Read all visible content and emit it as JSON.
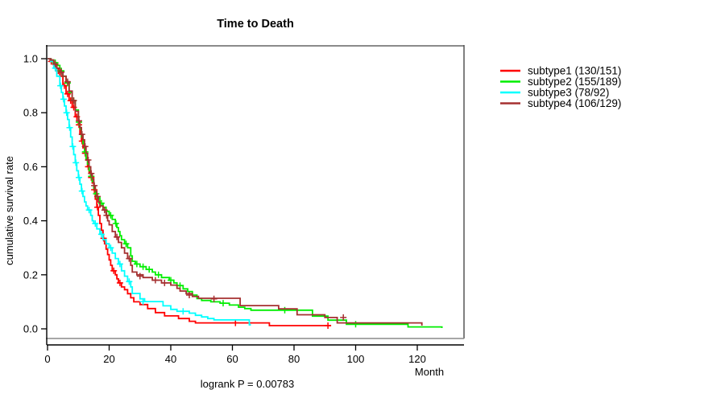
{
  "figure": {
    "title": "Time to Death",
    "x_axis_label": "Month",
    "y_axis_label": "cumulative survival rate",
    "footnote": "logrank P = 0.00783"
  },
  "axes": {
    "x_tick_labels": [
      "0",
      "20",
      "40",
      "60",
      "80",
      "100",
      "120"
    ],
    "y_tick_labels": [
      "0.0",
      "0.2",
      "0.4",
      "0.6",
      "0.8",
      "1.0"
    ],
    "frame_color": "#7f7f7f",
    "axis_color": "#000000"
  },
  "chart_data": {
    "type": "line",
    "variant": "kaplan_meier_step",
    "title": "Time to Death",
    "xlabel": "Month",
    "ylabel": "cumulative survival rate",
    "xlim": [
      0,
      135
    ],
    "ylim": [
      0,
      1.04
    ],
    "x_ticks": [
      0,
      20,
      40,
      60,
      80,
      100,
      120
    ],
    "y_ticks": [
      0.0,
      0.2,
      0.4,
      0.6,
      0.8,
      1.0
    ],
    "grid": false,
    "legend_position": "right-outside",
    "annotation": "logrank P = 0.00783",
    "series": [
      {
        "name": "subtype1",
        "label": "subtype1 (130/151)",
        "events": 130,
        "total": 151,
        "color": "#FF0000",
        "points": [
          [
            0,
            1.0
          ],
          [
            0.8,
            0.99
          ],
          [
            2,
            0.975
          ],
          [
            3,
            0.955
          ],
          [
            4,
            0.935
          ],
          [
            5,
            0.9
          ],
          [
            6,
            0.87
          ],
          [
            7,
            0.845
          ],
          [
            8,
            0.82
          ],
          [
            9,
            0.785
          ],
          [
            10,
            0.755
          ],
          [
            10.5,
            0.72
          ],
          [
            11,
            0.695
          ],
          [
            11.5,
            0.67
          ],
          [
            12,
            0.65
          ],
          [
            12.5,
            0.625
          ],
          [
            13,
            0.6
          ],
          [
            13.5,
            0.58
          ],
          [
            14,
            0.56
          ],
          [
            14.5,
            0.54
          ],
          [
            15,
            0.515
          ],
          [
            15.5,
            0.48
          ],
          [
            16,
            0.45
          ],
          [
            16.5,
            0.42
          ],
          [
            17,
            0.39
          ],
          [
            17.5,
            0.365
          ],
          [
            18,
            0.335
          ],
          [
            18.5,
            0.315
          ],
          [
            19,
            0.295
          ],
          [
            19.5,
            0.275
          ],
          [
            20,
            0.255
          ],
          [
            20.5,
            0.235
          ],
          [
            21,
            0.215
          ],
          [
            22,
            0.2
          ],
          [
            22.5,
            0.185
          ],
          [
            23,
            0.17
          ],
          [
            24,
            0.155
          ],
          [
            25,
            0.145
          ],
          [
            26,
            0.13
          ],
          [
            27,
            0.115
          ],
          [
            28,
            0.1
          ],
          [
            30,
            0.09
          ],
          [
            32.5,
            0.075
          ],
          [
            35,
            0.06
          ],
          [
            38,
            0.048
          ],
          [
            42.5,
            0.038
          ],
          [
            46,
            0.028
          ],
          [
            48,
            0.022
          ],
          [
            72,
            0.012
          ],
          [
            92,
            0.012
          ]
        ],
        "censor_ticks": [
          [
            1.2,
            0.99
          ],
          [
            3.5,
            0.955
          ],
          [
            5.5,
            0.9
          ],
          [
            6.5,
            0.87
          ],
          [
            7.5,
            0.845
          ],
          [
            8.5,
            0.82
          ],
          [
            9.5,
            0.785
          ],
          [
            10.2,
            0.755
          ],
          [
            11.2,
            0.695
          ],
          [
            12.2,
            0.65
          ],
          [
            13.2,
            0.6
          ],
          [
            14.2,
            0.56
          ],
          [
            15.2,
            0.515
          ],
          [
            16.2,
            0.45
          ],
          [
            18.2,
            0.335
          ],
          [
            21.5,
            0.215
          ],
          [
            23.5,
            0.17
          ],
          [
            61,
            0.022
          ],
          [
            91,
            0.012
          ]
        ]
      },
      {
        "name": "subtype2",
        "label": "subtype2 (155/189)",
        "events": 155,
        "total": 189,
        "color": "#00EE00",
        "points": [
          [
            0,
            1.0
          ],
          [
            1,
            0.995
          ],
          [
            2,
            0.985
          ],
          [
            3,
            0.975
          ],
          [
            4,
            0.955
          ],
          [
            5,
            0.935
          ],
          [
            6,
            0.91
          ],
          [
            7,
            0.875
          ],
          [
            8,
            0.845
          ],
          [
            9,
            0.81
          ],
          [
            10,
            0.765
          ],
          [
            10.5,
            0.74
          ],
          [
            11,
            0.71
          ],
          [
            11.5,
            0.685
          ],
          [
            12,
            0.655
          ],
          [
            12.5,
            0.63
          ],
          [
            13,
            0.61
          ],
          [
            13.5,
            0.585
          ],
          [
            14,
            0.565
          ],
          [
            14.5,
            0.545
          ],
          [
            15,
            0.52
          ],
          [
            15.5,
            0.5
          ],
          [
            16,
            0.485
          ],
          [
            17,
            0.465
          ],
          [
            18,
            0.45
          ],
          [
            19,
            0.435
          ],
          [
            20,
            0.42
          ],
          [
            21,
            0.405
          ],
          [
            22,
            0.39
          ],
          [
            22.5,
            0.375
          ],
          [
            23,
            0.36
          ],
          [
            23.5,
            0.345
          ],
          [
            24,
            0.33
          ],
          [
            25,
            0.315
          ],
          [
            26,
            0.3
          ],
          [
            27,
            0.27
          ],
          [
            27.5,
            0.25
          ],
          [
            28.5,
            0.24
          ],
          [
            30,
            0.23
          ],
          [
            32,
            0.22
          ],
          [
            34,
            0.21
          ],
          [
            35,
            0.2
          ],
          [
            37,
            0.19
          ],
          [
            39.5,
            0.18
          ],
          [
            41,
            0.17
          ],
          [
            42,
            0.16
          ],
          [
            44,
            0.148
          ],
          [
            45.5,
            0.138
          ],
          [
            47,
            0.125
          ],
          [
            48.5,
            0.112
          ],
          [
            50,
            0.105
          ],
          [
            53,
            0.1
          ],
          [
            56,
            0.095
          ],
          [
            59,
            0.088
          ],
          [
            62,
            0.08
          ],
          [
            64,
            0.075
          ],
          [
            66,
            0.069
          ],
          [
            86,
            0.047
          ],
          [
            91,
            0.032
          ],
          [
            97,
            0.017
          ],
          [
            117,
            0.007
          ],
          [
            128,
            0.003
          ]
        ],
        "censor_ticks": [
          [
            2.5,
            0.985
          ],
          [
            4.5,
            0.955
          ],
          [
            6.5,
            0.91
          ],
          [
            8.5,
            0.845
          ],
          [
            10.2,
            0.765
          ],
          [
            12.2,
            0.655
          ],
          [
            14.2,
            0.565
          ],
          [
            15.8,
            0.5
          ],
          [
            17.5,
            0.465
          ],
          [
            20.5,
            0.42
          ],
          [
            22.2,
            0.39
          ],
          [
            25.5,
            0.315
          ],
          [
            29,
            0.24
          ],
          [
            31,
            0.23
          ],
          [
            33,
            0.22
          ],
          [
            36,
            0.2
          ],
          [
            40,
            0.18
          ],
          [
            43,
            0.16
          ],
          [
            57,
            0.095
          ],
          [
            77,
            0.069
          ],
          [
            100,
            0.017
          ]
        ]
      },
      {
        "name": "subtype3",
        "label": "subtype3 (78/92)",
        "events": 78,
        "total": 92,
        "color": "#00FFFF",
        "points": [
          [
            0,
            1.0
          ],
          [
            1,
            0.99
          ],
          [
            2,
            0.965
          ],
          [
            3,
            0.935
          ],
          [
            4,
            0.9
          ],
          [
            4.5,
            0.875
          ],
          [
            5,
            0.85
          ],
          [
            5.5,
            0.825
          ],
          [
            6,
            0.8
          ],
          [
            6.5,
            0.775
          ],
          [
            7,
            0.745
          ],
          [
            7.5,
            0.71
          ],
          [
            8,
            0.675
          ],
          [
            8.5,
            0.645
          ],
          [
            9,
            0.615
          ],
          [
            9.5,
            0.585
          ],
          [
            10,
            0.56
          ],
          [
            10.5,
            0.535
          ],
          [
            11,
            0.51
          ],
          [
            11.5,
            0.49
          ],
          [
            12,
            0.47
          ],
          [
            12.5,
            0.455
          ],
          [
            13,
            0.44
          ],
          [
            14,
            0.42
          ],
          [
            14.5,
            0.4
          ],
          [
            15,
            0.39
          ],
          [
            16,
            0.37
          ],
          [
            17,
            0.35
          ],
          [
            18,
            0.33
          ],
          [
            19,
            0.315
          ],
          [
            20,
            0.3
          ],
          [
            21,
            0.28
          ],
          [
            22,
            0.26
          ],
          [
            23,
            0.24
          ],
          [
            24,
            0.215
          ],
          [
            25,
            0.195
          ],
          [
            26,
            0.175
          ],
          [
            27,
            0.155
          ],
          [
            27.5,
            0.131
          ],
          [
            30,
            0.111
          ],
          [
            31.5,
            0.101
          ],
          [
            37.5,
            0.085
          ],
          [
            40,
            0.072
          ],
          [
            42,
            0.065
          ],
          [
            46,
            0.058
          ],
          [
            48,
            0.05
          ],
          [
            50,
            0.044
          ],
          [
            52,
            0.038
          ],
          [
            54,
            0.033
          ],
          [
            65,
            0.033
          ],
          [
            65.5,
            0.015
          ],
          [
            66,
            0.015
          ]
        ],
        "censor_ticks": [
          [
            2.5,
            0.965
          ],
          [
            4.2,
            0.9
          ],
          [
            5.2,
            0.85
          ],
          [
            6.2,
            0.8
          ],
          [
            7.2,
            0.745
          ],
          [
            8.2,
            0.675
          ],
          [
            9.2,
            0.615
          ],
          [
            10.2,
            0.56
          ],
          [
            11.2,
            0.51
          ],
          [
            13.5,
            0.44
          ],
          [
            15.5,
            0.39
          ],
          [
            17.5,
            0.35
          ],
          [
            20.5,
            0.3
          ],
          [
            23.5,
            0.24
          ],
          [
            26.5,
            0.175
          ],
          [
            31,
            0.101
          ],
          [
            44,
            0.065
          ]
        ]
      },
      {
        "name": "subtype4",
        "label": "subtype4 (106/129)",
        "events": 106,
        "total": 129,
        "color": "#A53030",
        "points": [
          [
            0,
            1.0
          ],
          [
            1,
            0.995
          ],
          [
            2,
            0.98
          ],
          [
            3,
            0.965
          ],
          [
            4,
            0.95
          ],
          [
            5,
            0.935
          ],
          [
            6,
            0.915
          ],
          [
            7,
            0.88
          ],
          [
            8,
            0.845
          ],
          [
            9,
            0.805
          ],
          [
            10,
            0.77
          ],
          [
            10.5,
            0.745
          ],
          [
            11,
            0.72
          ],
          [
            11.5,
            0.7
          ],
          [
            12,
            0.675
          ],
          [
            12.5,
            0.65
          ],
          [
            13,
            0.625
          ],
          [
            13.5,
            0.6
          ],
          [
            14,
            0.575
          ],
          [
            14.5,
            0.555
          ],
          [
            15,
            0.53
          ],
          [
            15.5,
            0.51
          ],
          [
            16,
            0.49
          ],
          [
            16.5,
            0.47
          ],
          [
            17,
            0.455
          ],
          [
            18,
            0.44
          ],
          [
            19,
            0.42
          ],
          [
            19.5,
            0.4
          ],
          [
            20,
            0.385
          ],
          [
            21,
            0.36
          ],
          [
            22,
            0.34
          ],
          [
            23,
            0.32
          ],
          [
            24,
            0.3
          ],
          [
            25,
            0.28
          ],
          [
            26,
            0.26
          ],
          [
            27,
            0.235
          ],
          [
            27.5,
            0.21
          ],
          [
            29,
            0.2
          ],
          [
            31,
            0.19
          ],
          [
            34,
            0.18
          ],
          [
            37,
            0.17
          ],
          [
            40,
            0.162
          ],
          [
            42,
            0.15
          ],
          [
            43,
            0.14
          ],
          [
            45,
            0.13
          ],
          [
            47,
            0.12
          ],
          [
            49,
            0.113
          ],
          [
            62.5,
            0.086
          ],
          [
            75,
            0.074
          ],
          [
            81,
            0.052
          ],
          [
            90,
            0.042
          ],
          [
            94,
            0.022
          ],
          [
            121,
            0.022
          ],
          [
            121.5,
            0.012
          ]
        ],
        "censor_ticks": [
          [
            2.5,
            0.98
          ],
          [
            4.5,
            0.95
          ],
          [
            6.5,
            0.915
          ],
          [
            8.5,
            0.845
          ],
          [
            10.2,
            0.77
          ],
          [
            11.2,
            0.72
          ],
          [
            12.2,
            0.675
          ],
          [
            13.2,
            0.625
          ],
          [
            14.2,
            0.575
          ],
          [
            15.2,
            0.53
          ],
          [
            16.2,
            0.49
          ],
          [
            18.5,
            0.44
          ],
          [
            19.2,
            0.42
          ],
          [
            22.5,
            0.34
          ],
          [
            26.5,
            0.26
          ],
          [
            30,
            0.195
          ],
          [
            35,
            0.18
          ],
          [
            38,
            0.17
          ],
          [
            46,
            0.125
          ],
          [
            54,
            0.111
          ],
          [
            96,
            0.042
          ]
        ]
      }
    ]
  }
}
